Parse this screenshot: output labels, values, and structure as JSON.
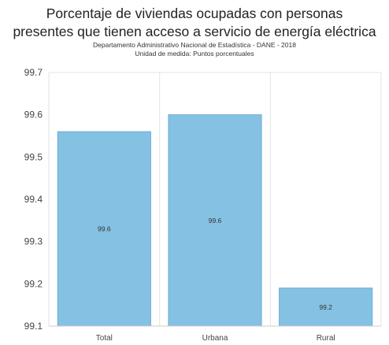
{
  "chart_data": {
    "type": "bar",
    "title": "Porcentaje de viviendas ocupadas con personas presentes que tienen acceso a servicio de energía eléctrica",
    "title_lines": [
      "Porcentaje de viviendas ocupadas con personas",
      "presentes que tienen acceso a servicio de energía eléctrica"
    ],
    "subtitle_lines": [
      "Departamento Administrativo Nacional de Estadística - DANE - 2018",
      "Unidad de medida: Puntos porcentuales"
    ],
    "categories": [
      "Total",
      "Urbana",
      "Rural"
    ],
    "values": [
      99.56,
      99.6,
      99.19
    ],
    "data_labels": [
      "99.6",
      "99.6",
      "99.2"
    ],
    "ylim": [
      99.1,
      99.7
    ],
    "yticks": [
      "99.7",
      "99.6",
      "99.5",
      "99.4",
      "99.3",
      "99.2",
      "99.1"
    ],
    "xlabel": "",
    "ylabel": "",
    "grid": "vertical separators",
    "colors": {
      "bar": "#85c1e3",
      "bar_edge": "#6aaed6",
      "grid": "#e3e3e3"
    }
  }
}
